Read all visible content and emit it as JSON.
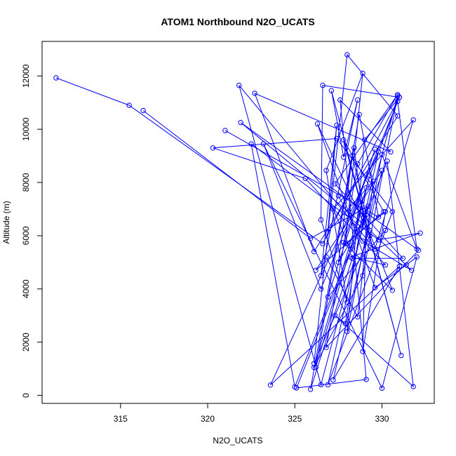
{
  "chart_data": {
    "type": "line",
    "title": "ATOM1 Northbound N2O_UCATS",
    "xlabel": "N2O_UCATS",
    "ylabel": "Altitude (m)",
    "xlim": [
      310.5,
      333.0
    ],
    "ylim": [
      -300,
      13300
    ],
    "xticks": [
      315,
      320,
      325,
      330
    ],
    "yticks": [
      0,
      2000,
      4000,
      6000,
      8000,
      10000,
      12000
    ],
    "grid": false,
    "color": "#0000ff",
    "marker": "open-circle",
    "series": [
      {
        "x": [
          311.3,
          315.5,
          326.6,
          331.0,
          326.5,
          323.2,
          330.0,
          332.0,
          331.4,
          329.6,
          326.3,
          329.3,
          326.1,
          328.0,
          330.9,
          326.1,
          322.7,
          330.5,
          327.6,
          329.1,
          325.1,
          330.3,
          331.8,
          327.3,
          327.9,
          329.1,
          328.2,
          327.2,
          331.8,
          329.6,
          321.8,
          326.5,
          330.9,
          328.9,
          326.1,
          329.3,
          330.9,
          332.0,
          330.0,
          328.0,
          329.0,
          331.0,
          326.6,
          326.5,
          328.0,
          326.8,
          328.9,
          327.9,
          330.2,
          328.9,
          329.1,
          327.5,
          328.3,
          329.3,
          331.7,
          328.9,
          327.5
        ],
        "y": [
          11930,
          10900,
          5700,
          11200,
          4000,
          9450,
          270,
          5200,
          4900,
          4050,
          10200,
          6000,
          1200,
          12800,
          10500,
          5400,
          11350,
          9150,
          11100,
          600,
          280,
          8800,
          330,
          3000,
          2700,
          7800,
          5500,
          7000,
          10350,
          5500,
          11650,
          400,
          11250,
          4500,
          1050,
          8250,
          11050,
          5500,
          9050,
          2400,
          9600,
          11200,
          11650,
          6600,
          3500,
          8450,
          12100,
          5700,
          6900,
          1650,
          6800,
          5000,
          9000,
          6200,
          4700,
          5800,
          7500
        ]
      },
      {
        "x": [
          316.3,
          325.9,
          329.2,
          325.0,
          322.5,
          329.8,
          332.2,
          328.2,
          330.2,
          325.6,
          320.3,
          327.4,
          330.6,
          326.9,
          329.8,
          323.6,
          331.0,
          327.2,
          330.0,
          326.2,
          330.1,
          327.8,
          331.1,
          327.1,
          327.8,
          328.6,
          326.5,
          327.4,
          326.9,
          329.5,
          328.6,
          326.8
        ],
        "y": [
          10700,
          5900,
          7100,
          320,
          9450,
          5850,
          6100,
          5200,
          4900,
          8150,
          9300,
          9650,
          6900,
          400,
          9150,
          390,
          4850,
          580,
          8450,
          4700,
          6900,
          9600,
          1500,
          11450,
          8950,
          11100,
          4500,
          10150,
          6150,
          8050,
          2950,
          5200
        ]
      },
      {
        "x": [
          321.0,
          329.8,
          328.7,
          325.9,
          328.3,
          331.2,
          327.3,
          330.9,
          328.6,
          326.8,
          332.1,
          321.9,
          329.0,
          328.4,
          326.2,
          328.8,
          330.6,
          327.8,
          329.6,
          326.9,
          330.2
        ],
        "y": [
          9950,
          6700,
          10550,
          230,
          5150,
          5150,
          7950,
          11300,
          8700,
          1800,
          5450,
          10250,
          6400,
          9300,
          1050,
          6900,
          3950,
          5750,
          9250,
          3700,
          6200
        ]
      }
    ]
  }
}
